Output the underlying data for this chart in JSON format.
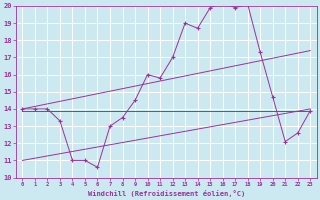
{
  "background_color": "#cce8f0",
  "grid_color": "#ffffff",
  "line_color": "#993399",
  "xlabel": "Windchill (Refroidissement éolien,°C)",
  "xlim": [
    -0.5,
    23.5
  ],
  "ylim": [
    10,
    20
  ],
  "yticks": [
    10,
    11,
    12,
    13,
    14,
    15,
    16,
    17,
    18,
    19,
    20
  ],
  "xticks": [
    0,
    1,
    2,
    3,
    4,
    5,
    6,
    7,
    8,
    9,
    10,
    11,
    12,
    13,
    14,
    15,
    16,
    17,
    18,
    19,
    20,
    21,
    22,
    23
  ],
  "series_main": {
    "x": [
      0,
      1,
      2,
      3,
      4,
      5,
      6,
      7,
      8,
      9,
      10,
      11,
      12,
      13,
      14,
      15,
      16,
      17,
      18,
      19,
      20,
      21,
      22,
      23
    ],
    "y": [
      14.0,
      14.0,
      14.0,
      13.3,
      11.0,
      11.0,
      10.6,
      13.0,
      13.5,
      14.5,
      16.0,
      15.8,
      17.0,
      19.0,
      18.7,
      19.9,
      20.2,
      19.9,
      20.1,
      17.3,
      14.7,
      12.1,
      12.6,
      13.9
    ]
  },
  "series_lines": [
    {
      "x": [
        0,
        23
      ],
      "y": [
        13.9,
        13.9
      ]
    },
    {
      "x": [
        0,
        23
      ],
      "y": [
        14.0,
        17.4
      ]
    },
    {
      "x": [
        0,
        23
      ],
      "y": [
        11.0,
        14.0
      ]
    }
  ]
}
